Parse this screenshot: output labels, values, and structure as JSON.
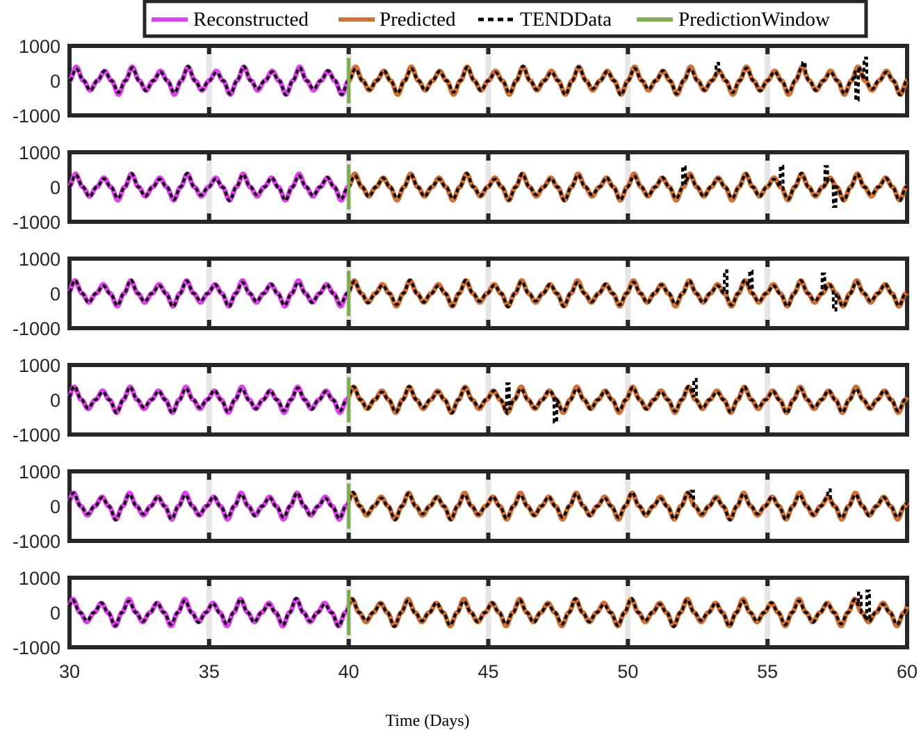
{
  "chart_data": {
    "type": "line",
    "xlabel": "Time (Days)",
    "xlim": [
      30,
      60
    ],
    "x_ticks": [
      "30",
      "35",
      "40",
      "45",
      "50",
      "55",
      "60"
    ],
    "ylim": [
      -1000,
      1000
    ],
    "y_ticks": [
      "1000",
      "0",
      "-1000"
    ],
    "panel_count": 6,
    "prediction_window_start": 40,
    "reconstructed_range": [
      30,
      40
    ],
    "predicted_range": [
      40,
      60
    ],
    "legend": {
      "placement": "top-center",
      "entries": [
        {
          "label": "Reconstructed",
          "color": "#e040f0",
          "style": "solid"
        },
        {
          "label": "Predicted",
          "color": "#d26f32",
          "style": "solid"
        },
        {
          "label": "TENDData",
          "color": "#000000",
          "style": "dashed"
        },
        {
          "label": "PredictionWindow",
          "color": "#7ab04a",
          "style": "solid"
        }
      ]
    },
    "series_model": {
      "period_days": 1,
      "typical_amplitude": 400,
      "spike_max": 650
    },
    "panels": [
      {
        "amplitude": 420,
        "spikes": [
          [
            53.2,
            500
          ],
          [
            56.3,
            520
          ],
          [
            58.5,
            650
          ],
          [
            58.2,
            -560
          ]
        ]
      },
      {
        "amplitude": 400,
        "spikes": [
          [
            55.5,
            600
          ],
          [
            57.1,
            590
          ],
          [
            57.4,
            -560
          ],
          [
            52.0,
            580
          ]
        ]
      },
      {
        "amplitude": 390,
        "spikes": [
          [
            53.5,
            650
          ],
          [
            54.4,
            640
          ],
          [
            57.0,
            560
          ],
          [
            57.4,
            -480
          ]
        ]
      },
      {
        "amplitude": 390,
        "spikes": [
          [
            47.4,
            -640
          ],
          [
            52.4,
            590
          ],
          [
            45.7,
            460
          ]
        ]
      },
      {
        "amplitude": 400,
        "spikes": [
          [
            52.3,
            430
          ],
          [
            57.2,
            470
          ]
        ]
      },
      {
        "amplitude": 410,
        "spikes": [
          [
            58.6,
            620
          ],
          [
            58.3,
            560
          ]
        ]
      }
    ]
  }
}
